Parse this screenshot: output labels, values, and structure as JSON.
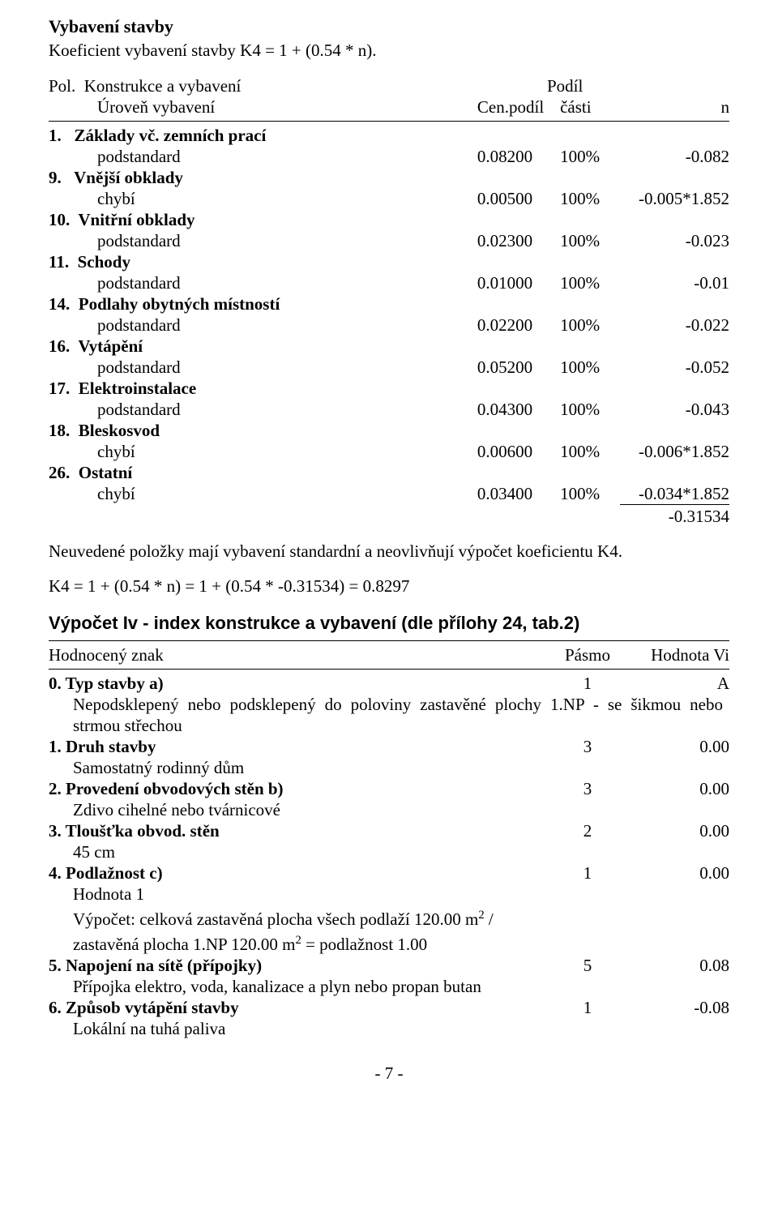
{
  "title": "Vybavení stavby",
  "subtitle": "Koeficient vybavení stavby K4 = 1 + (0.54 * n).",
  "tbl1": {
    "h1a": "Pol.",
    "h1b": "Konstrukce a vybavení",
    "h2a": "Úroveň vybavení",
    "h2b": "Cen.podíl",
    "h2c": "Podíl",
    "h2cL2": "části",
    "h2d": "n",
    "rows": [
      {
        "label": "1.   Základy vč. zemních prací",
        "sub": "podstandard",
        "c": "0.08200",
        "p": "100%",
        "n": "-0.082"
      },
      {
        "label": "9.   Vnější obklady",
        "sub": "chybí",
        "c": "0.00500",
        "p": "100%",
        "n": "-0.005*1.852"
      },
      {
        "label": "10.  Vnitřní obklady",
        "sub": "podstandard",
        "c": "0.02300",
        "p": "100%",
        "n": "-0.023"
      },
      {
        "label": "11.  Schody",
        "sub": "podstandard",
        "c": "0.01000",
        "p": "100%",
        "n": "-0.01"
      },
      {
        "label": "14.  Podlahy obytných místností",
        "sub": "podstandard",
        "c": "0.02200",
        "p": "100%",
        "n": "-0.022"
      },
      {
        "label": "16.  Vytápění",
        "sub": "podstandard",
        "c": "0.05200",
        "p": "100%",
        "n": "-0.052"
      },
      {
        "label": "17.  Elektroinstalace",
        "sub": "podstandard",
        "c": "0.04300",
        "p": "100%",
        "n": "-0.043"
      },
      {
        "label": "18.  Bleskosvod",
        "sub": "chybí",
        "c": "0.00600",
        "p": "100%",
        "n": "-0.006*1.852"
      },
      {
        "label": "26.  Ostatní",
        "sub": "chybí",
        "c": "0.03400",
        "p": "100%",
        "n": "-0.034*1.852"
      }
    ],
    "total": "-0.31534"
  },
  "note": "Neuvedené položky mají vybavení standardní a neovlivňují výpočet koeficientu K4.",
  "k4line": "K4 = 1 + (0.54 * n) = 1 + (0.54 * -0.31534) = 0.8297",
  "h2": "Výpočet Iv - index konstrukce a vybavení (dle přílohy 24, tab.2)",
  "tbl2": {
    "hA": "Hodnocený znak",
    "hB": "Pásmo",
    "hC": "Hodnota Vi",
    "r0": {
      "label": "0. Typ stavby a)",
      "p": "1",
      "v": "A",
      "desc": "Nepodsklepený nebo podsklepený do poloviny zastavěné plochy 1.NP - se šikmou nebo strmou střechou"
    },
    "r1": {
      "label": "1. Druh stavby",
      "p": "3",
      "v": "0.00",
      "desc": "Samostatný rodinný dům"
    },
    "r2": {
      "label": "2. Provedení obvodových stěn b)",
      "p": "3",
      "v": "0.00",
      "desc": "Zdivo cihelné nebo tvárnicové"
    },
    "r3": {
      "label": "3. Tloušťka obvod. stěn",
      "p": "2",
      "v": "0.00",
      "desc": "45 cm"
    },
    "r4": {
      "label": "4. Podlažnost c)",
      "p": "1",
      "v": "0.00",
      "desc1": "Hodnota 1",
      "desc2a": "Výpočet: celková zastavěná plocha všech podlaží 120.00 m",
      "desc2b": " /",
      "desc3a": "zastavěná plocha 1.NP 120.00 m",
      "desc3b": " = podlažnost 1.00"
    },
    "r5": {
      "label": "5. Napojení na sítě (přípojky)",
      "p": "5",
      "v": "0.08",
      "desc": "Přípojka elektro, voda, kanalizace a plyn nebo propan butan"
    },
    "r6": {
      "label": "6. Způsob vytápění stavby",
      "p": "1",
      "v": "-0.08",
      "desc": "Lokální na tuhá paliva"
    }
  },
  "footer": "- 7 -"
}
